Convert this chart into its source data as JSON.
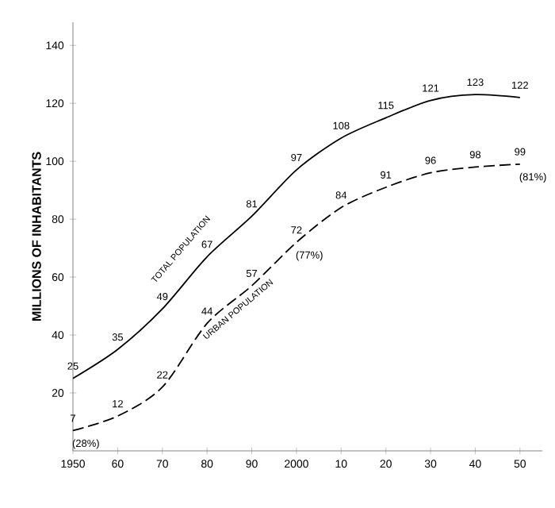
{
  "chart_data": {
    "type": "line",
    "ylabel": "MILLIONS OF INHABITANTS",
    "x": [
      1950,
      1960,
      1970,
      1980,
      1990,
      2000,
      2010,
      2020,
      2030,
      2040,
      2050
    ],
    "series": [
      {
        "name": "TOTAL POPULATION",
        "color": "#000000",
        "line_style": "solid",
        "values": [
          25,
          35,
          49,
          67,
          81,
          97,
          108,
          115,
          121,
          123,
          122
        ]
      },
      {
        "name": "URBAN POPULATION",
        "color": "#000000",
        "line_style": "dashed",
        "values": [
          7,
          12,
          22,
          44,
          57,
          72,
          84,
          91,
          96,
          98,
          99
        ]
      }
    ],
    "data_labels": true,
    "marker": "none",
    "grid": false,
    "xlim": [
      1950,
      2055
    ],
    "ylim": [
      0,
      148
    ],
    "xticks": [
      1950,
      {
        "value": 1960,
        "label": "60"
      },
      {
        "value": 1970,
        "label": "70"
      },
      {
        "value": 1980,
        "label": "80"
      },
      {
        "value": 1990,
        "label": "90"
      },
      2000,
      {
        "value": 2010,
        "label": "10"
      },
      {
        "value": 2020,
        "label": "20"
      },
      {
        "value": 2030,
        "label": "30"
      },
      {
        "value": 2040,
        "label": "40"
      },
      {
        "value": 2050,
        "label": "50"
      }
    ],
    "yticks": [
      20,
      40,
      60,
      80,
      100,
      120,
      140
    ],
    "annotations": [
      {
        "text": "(28%)",
        "x": 1950,
        "y": 7
      },
      {
        "text": "(77%)",
        "x": 2000,
        "y": 72
      },
      {
        "text": "(81%)",
        "x": 2050,
        "y": 99
      }
    ]
  }
}
